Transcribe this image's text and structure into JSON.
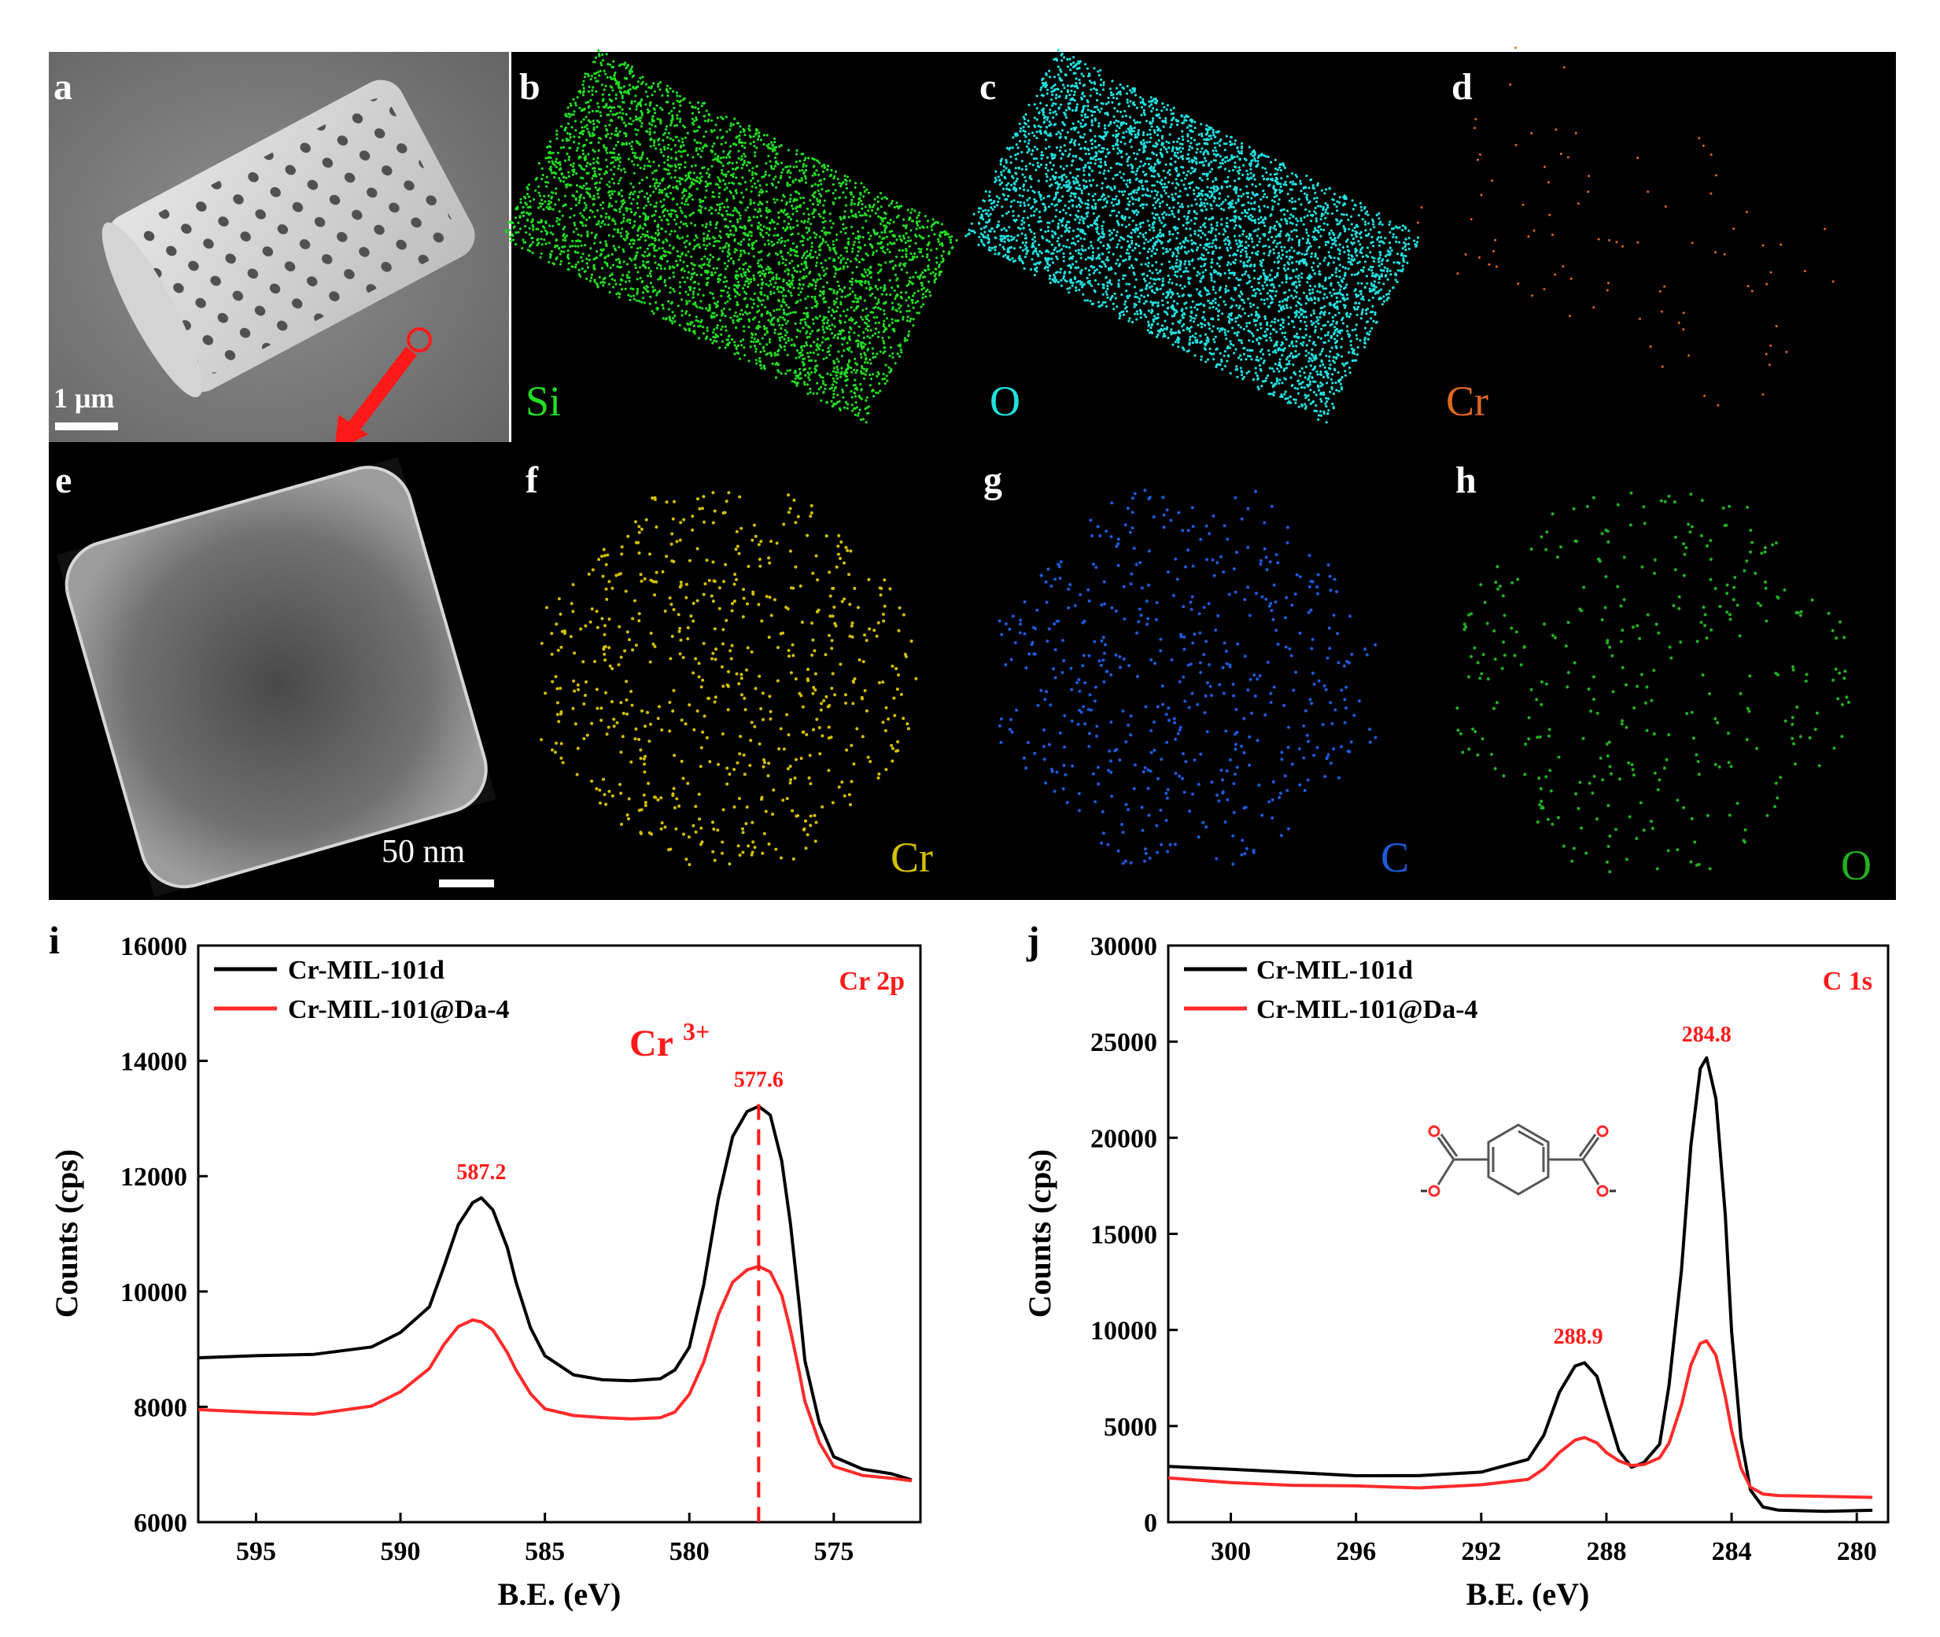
{
  "panels": {
    "a": {
      "letter": "a",
      "scale_label": "1 μm"
    },
    "b": {
      "letter": "b",
      "element": "Si",
      "color": "#22dd22"
    },
    "c": {
      "letter": "c",
      "element": "O",
      "color": "#22e0e0"
    },
    "d": {
      "letter": "d",
      "element": "Cr",
      "color": "#e06820"
    },
    "e": {
      "letter": "e",
      "scale_label": "50 nm"
    },
    "f": {
      "letter": "f",
      "element": "Cr",
      "color": "#d4c000"
    },
    "g": {
      "letter": "g",
      "element": "C",
      "color": "#1e5adc"
    },
    "h": {
      "letter": "h",
      "element": "O",
      "color": "#22b022"
    }
  },
  "chart_data": [
    {
      "type": "line",
      "panel_letter": "i",
      "xlabel": "B.E. (eV)",
      "ylabel": "Counts (cps)",
      "xlim": [
        597,
        572
      ],
      "ylim": [
        6000,
        16000
      ],
      "xticks": [
        595,
        590,
        585,
        580,
        575
      ],
      "yticks": [
        6000,
        8000,
        10000,
        12000,
        14000,
        16000
      ],
      "region_label": "Cr 2p",
      "annotation_main": "Cr",
      "annotation_sup": "3+",
      "marker_line_x": 577.6,
      "peak_labels": [
        {
          "label": "587.2",
          "x": 587.2,
          "y": 11650
        },
        {
          "label": "577.6",
          "x": 577.6,
          "y": 13250
        }
      ],
      "series": [
        {
          "name": "Cr-MIL-101d",
          "color": "#000000",
          "x": [
            597,
            595,
            593,
            591,
            590,
            589,
            588.5,
            588,
            587.5,
            587.2,
            586.8,
            586.3,
            586,
            585.5,
            585,
            584,
            583,
            582,
            581,
            580.5,
            580,
            579.5,
            579,
            578.5,
            578,
            577.6,
            577.2,
            576.8,
            576.5,
            576.2,
            576,
            575.5,
            575,
            574,
            573,
            572.3
          ],
          "y": [
            8850,
            8870,
            8880,
            9000,
            9250,
            9700,
            10400,
            11150,
            11550,
            11650,
            11450,
            10800,
            10200,
            9400,
            8900,
            8550,
            8450,
            8420,
            8450,
            8600,
            9000,
            10100,
            11600,
            12700,
            13150,
            13250,
            13100,
            12300,
            11200,
            9800,
            8800,
            7700,
            7100,
            6880,
            6800,
            6700
          ]
        },
        {
          "name": "Cr-MIL-101@Da-4",
          "color": "#ff2a2a",
          "x": [
            597,
            595,
            593,
            591,
            590,
            589,
            588.5,
            588,
            587.5,
            587.2,
            586.8,
            586.3,
            586,
            585.5,
            585,
            584,
            583,
            582,
            581,
            580.5,
            580,
            579.5,
            579,
            578.5,
            578,
            577.6,
            577.2,
            576.8,
            576.5,
            576.2,
            576,
            575.5,
            575,
            574,
            573,
            572.3
          ],
          "y": [
            7950,
            7920,
            7900,
            8050,
            8300,
            8700,
            9100,
            9400,
            9500,
            9450,
            9300,
            8900,
            8600,
            8200,
            7950,
            7850,
            7830,
            7820,
            7850,
            7950,
            8250,
            8800,
            9600,
            10150,
            10350,
            10400,
            10300,
            9900,
            9300,
            8600,
            8100,
            7400,
            7000,
            6850,
            6800,
            6750
          ]
        }
      ]
    },
    {
      "type": "line",
      "panel_letter": "j",
      "xlabel": "B.E. (eV)",
      "ylabel": "Counts (cps)",
      "xlim": [
        302,
        279
      ],
      "ylim": [
        0,
        30000
      ],
      "xticks": [
        300,
        296,
        292,
        288,
        284,
        280
      ],
      "yticks": [
        0,
        5000,
        10000,
        15000,
        20000,
        25000,
        30000
      ],
      "region_label": "C 1s",
      "peak_labels": [
        {
          "label": "284.8",
          "x": 284.8,
          "y": 24100
        },
        {
          "label": "288.9",
          "x": 288.9,
          "y": 8400
        }
      ],
      "series": [
        {
          "name": "Cr-MIL-101d",
          "color": "#000000",
          "x": [
            302,
            300,
            298,
            296,
            294,
            292,
            290.5,
            290,
            289.5,
            289,
            288.7,
            288.3,
            288,
            287.6,
            287.2,
            286.8,
            286.3,
            286,
            285.6,
            285.3,
            285,
            284.8,
            284.5,
            284.2,
            284,
            283.7,
            283.4,
            283,
            282.5,
            281,
            279.5
          ],
          "y": [
            2900,
            2700,
            2500,
            2300,
            2300,
            2500,
            3200,
            4500,
            6800,
            8200,
            8400,
            7700,
            6000,
            3800,
            2900,
            3100,
            4000,
            7000,
            13000,
            19500,
            23500,
            24100,
            22000,
            16000,
            10000,
            4500,
            1800,
            900,
            700,
            600,
            600
          ]
        },
        {
          "name": "Cr-MIL-101@Da-4",
          "color": "#ff2a2a",
          "x": [
            302,
            300,
            298,
            296,
            294,
            292,
            290.5,
            290,
            289.5,
            289,
            288.7,
            288.3,
            288,
            287.6,
            287.2,
            286.8,
            286.3,
            286,
            285.6,
            285.3,
            285,
            284.8,
            284.5,
            284.2,
            284,
            283.7,
            283.4,
            283,
            282.5,
            281,
            279.5
          ],
          "y": [
            2300,
            2100,
            2000,
            2000,
            1900,
            2050,
            2300,
            2800,
            3600,
            4200,
            4300,
            4000,
            3500,
            3100,
            2900,
            3000,
            3400,
            4200,
            6200,
            8300,
            9400,
            9500,
            8700,
            6500,
            4700,
            2700,
            1700,
            1350,
            1300,
            1300,
            1300
          ]
        }
      ]
    }
  ]
}
